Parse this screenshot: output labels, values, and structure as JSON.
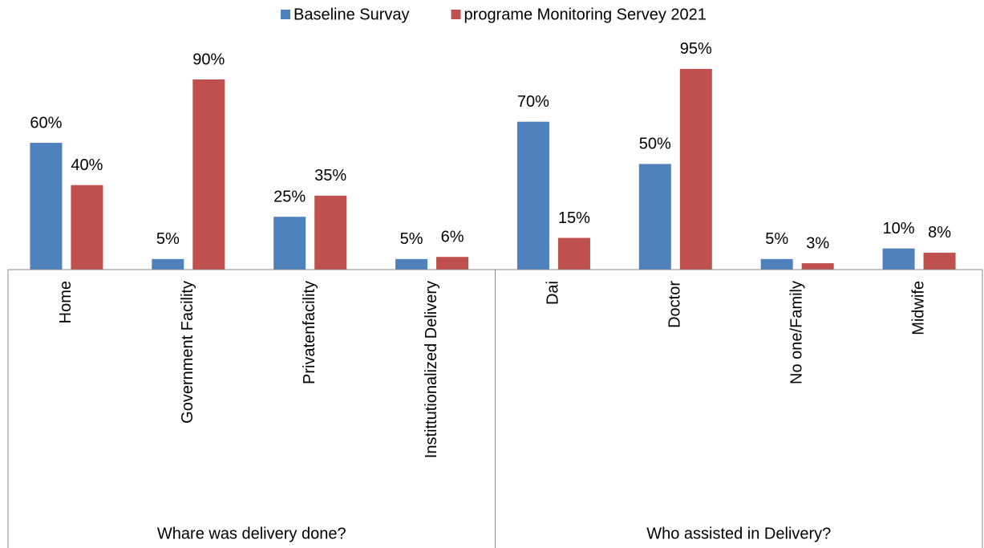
{
  "chart_data": {
    "type": "bar",
    "categories": [
      "Home",
      "Government Facility",
      "Privatenfacility",
      "Instittutionalized Delivery",
      "Dai",
      "Doctor",
      "No one/Family",
      "Midwife"
    ],
    "groups": [
      {
        "label": "Whare was delivery done?",
        "categories": [
          0,
          1,
          2,
          3
        ]
      },
      {
        "label": "Who assisted in Delivery?",
        "categories": [
          4,
          5,
          6,
          7
        ]
      }
    ],
    "series": [
      {
        "name": "Baseline Survay",
        "color": "#4f81bd",
        "values": [
          60,
          5,
          25,
          5,
          70,
          50,
          5,
          10
        ],
        "value_labels": [
          "60%",
          "5%",
          "25%",
          "5%",
          "70%",
          "50%",
          "5%",
          "10%"
        ]
      },
      {
        "name": "programe Monitoring Servey 2021",
        "color": "#c0504d",
        "values": [
          40,
          90,
          35,
          6,
          15,
          95,
          3,
          8
        ],
        "value_labels": [
          "40%",
          "90%",
          "35%",
          "6%",
          "15%",
          "95%",
          "3%",
          "8%"
        ]
      }
    ],
    "legend": "top"
  }
}
